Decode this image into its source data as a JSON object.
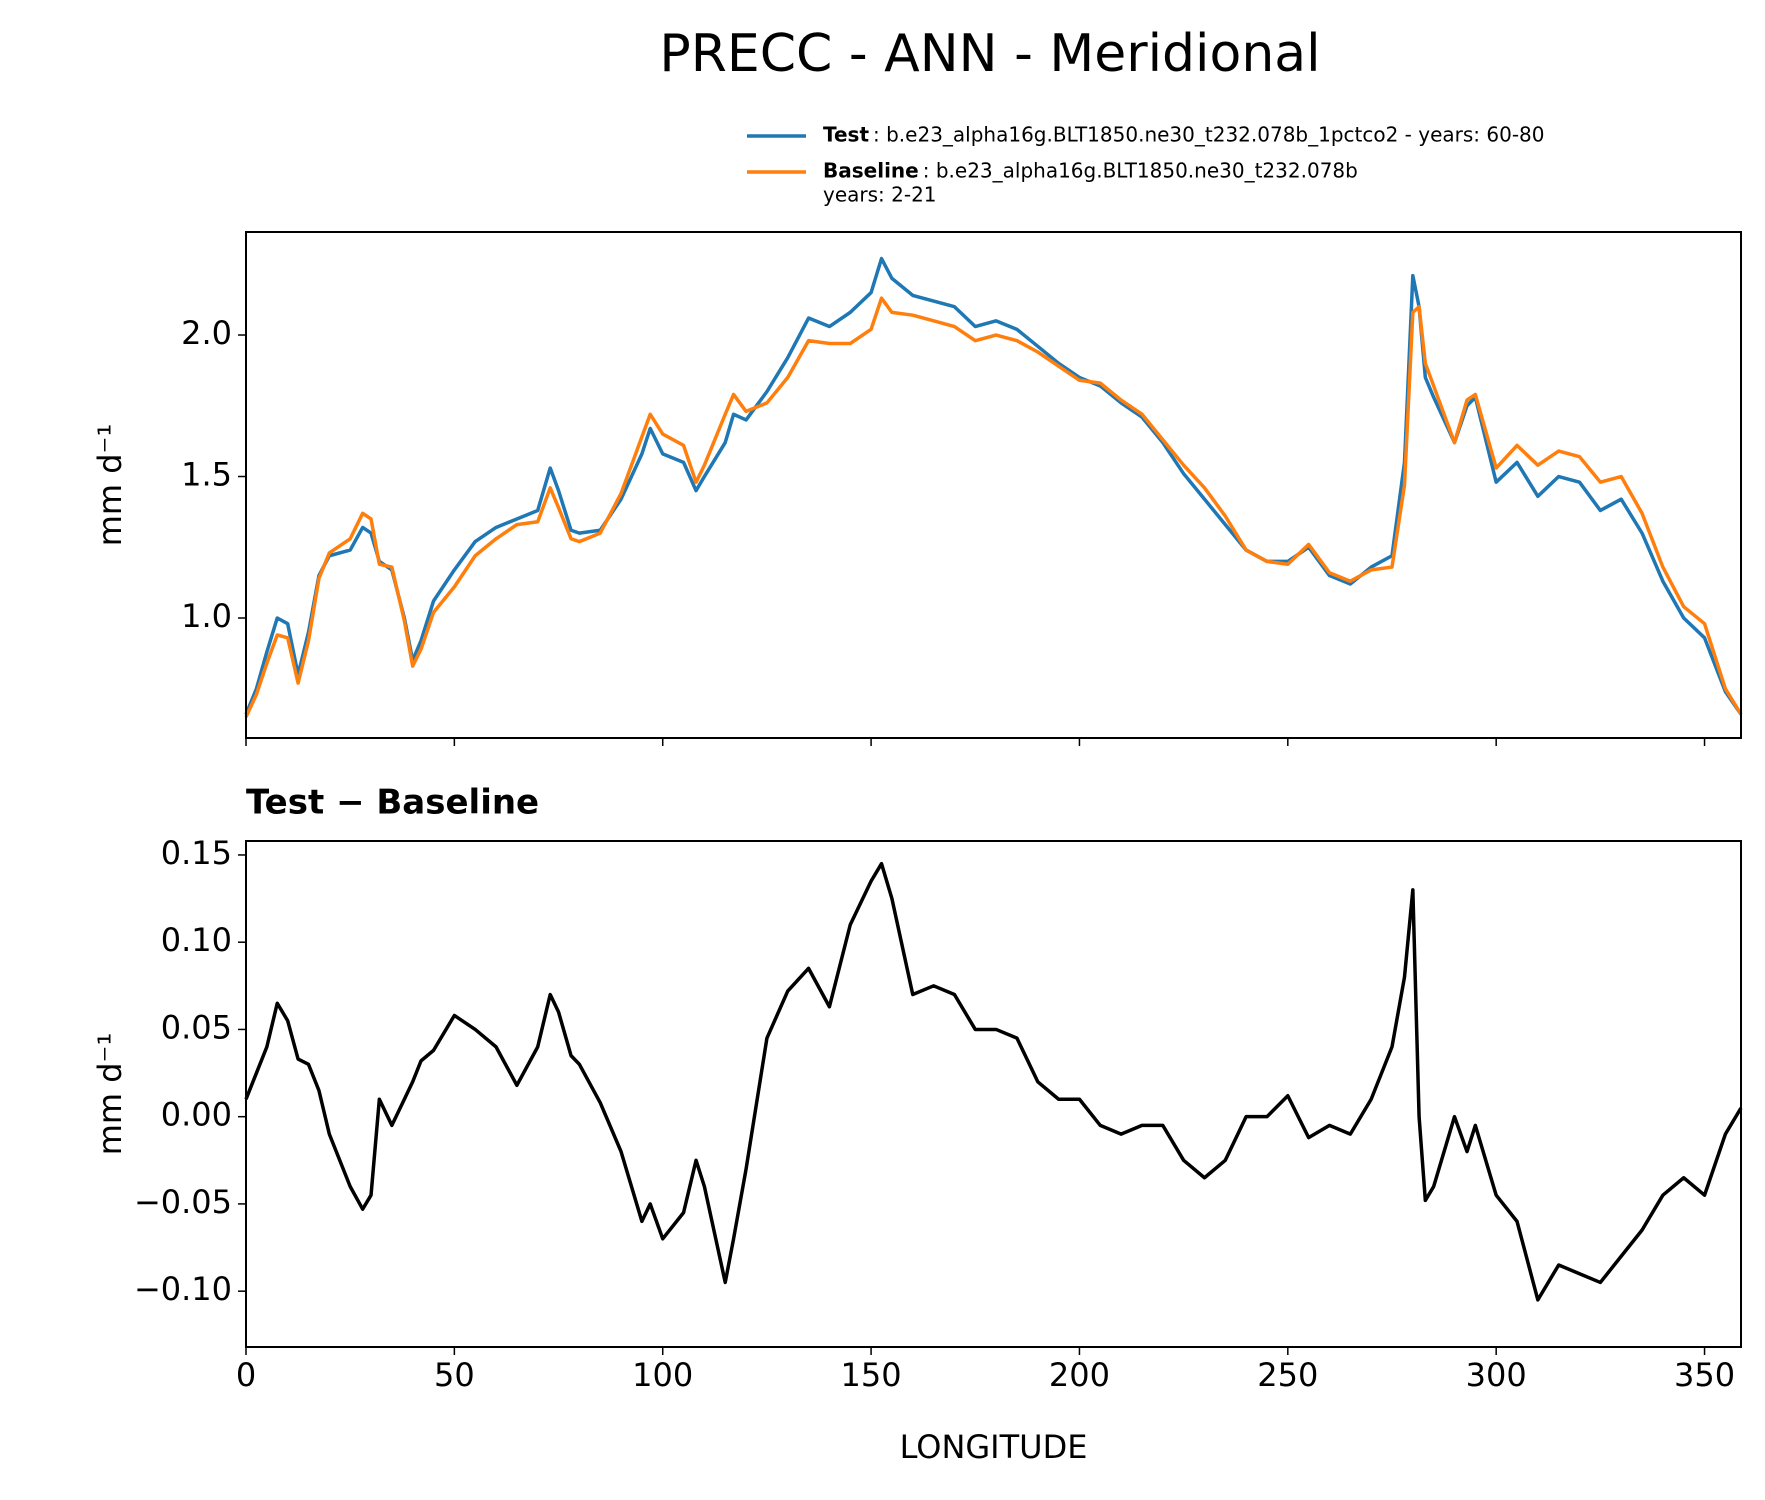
{
  "title": "PRECC - ANN - Meridional",
  "chart_data": [
    {
      "type": "line",
      "ylabel": "mm d⁻¹",
      "x": [
        0,
        2.5,
        5,
        7.5,
        10,
        12.5,
        15,
        17.5,
        20,
        25,
        28,
        30,
        32,
        35,
        38,
        40,
        42,
        45,
        50,
        55,
        60,
        65,
        70,
        73,
        75,
        78,
        80,
        85,
        90,
        95,
        97,
        100,
        105,
        108,
        110,
        115,
        117,
        120,
        125,
        130,
        135,
        140,
        145,
        150,
        152.5,
        155,
        160,
        165,
        170,
        175,
        180,
        185,
        190,
        195,
        200,
        205,
        210,
        215,
        220,
        225,
        230,
        235,
        240,
        245,
        250,
        255,
        260,
        265,
        270,
        275,
        278,
        280,
        281.5,
        283,
        285,
        290,
        293,
        295,
        300,
        305,
        310,
        315,
        320,
        325,
        330,
        335,
        340,
        345,
        350,
        355,
        358.75
      ],
      "series": [
        {
          "name": "Test",
          "description": [
            ": b.e23_alpha16g.BLT1850.ne30_t232.078b_1pctco2 - years: 60-80"
          ],
          "color": "#1f77b4",
          "values": [
            0.66,
            0.75,
            0.88,
            1.0,
            0.98,
            0.8,
            0.95,
            1.15,
            1.22,
            1.24,
            1.32,
            1.3,
            1.2,
            1.17,
            1.0,
            0.85,
            0.92,
            1.06,
            1.17,
            1.27,
            1.32,
            1.35,
            1.38,
            1.53,
            1.45,
            1.31,
            1.3,
            1.31,
            1.42,
            1.58,
            1.67,
            1.58,
            1.55,
            1.45,
            1.5,
            1.62,
            1.72,
            1.7,
            1.8,
            1.92,
            2.06,
            2.03,
            2.08,
            2.15,
            2.27,
            2.2,
            2.14,
            2.12,
            2.1,
            2.03,
            2.05,
            2.02,
            1.96,
            1.9,
            1.85,
            1.82,
            1.76,
            1.71,
            1.62,
            1.51,
            1.42,
            1.33,
            1.24,
            1.2,
            1.2,
            1.25,
            1.15,
            1.12,
            1.18,
            1.22,
            1.55,
            2.21,
            2.1,
            1.85,
            1.78,
            1.62,
            1.75,
            1.78,
            1.48,
            1.55,
            1.43,
            1.5,
            1.48,
            1.38,
            1.42,
            1.3,
            1.13,
            1.0,
            0.93,
            0.74,
            0.66
          ]
        },
        {
          "name": "Baseline",
          "description": [
            ": b.e23_alpha16g.BLT1850.ne30_t232.078b",
            "years: 2-21"
          ],
          "color": "#ff7f0e",
          "values": [
            0.65,
            0.73,
            0.84,
            0.94,
            0.93,
            0.77,
            0.92,
            1.14,
            1.23,
            1.28,
            1.37,
            1.35,
            1.19,
            1.18,
            0.99,
            0.83,
            0.89,
            1.02,
            1.11,
            1.22,
            1.28,
            1.33,
            1.34,
            1.46,
            1.39,
            1.28,
            1.27,
            1.3,
            1.44,
            1.64,
            1.72,
            1.65,
            1.61,
            1.48,
            1.54,
            1.72,
            1.79,
            1.73,
            1.76,
            1.85,
            1.98,
            1.97,
            1.97,
            2.02,
            2.13,
            2.08,
            2.07,
            2.05,
            2.03,
            1.98,
            2.0,
            1.98,
            1.94,
            1.89,
            1.84,
            1.83,
            1.77,
            1.72,
            1.63,
            1.54,
            1.46,
            1.36,
            1.24,
            1.2,
            1.19,
            1.26,
            1.16,
            1.13,
            1.17,
            1.18,
            1.47,
            2.08,
            2.1,
            1.9,
            1.82,
            1.62,
            1.77,
            1.79,
            1.53,
            1.61,
            1.54,
            1.59,
            1.57,
            1.48,
            1.5,
            1.37,
            1.18,
            1.04,
            0.98,
            0.75,
            0.66
          ]
        }
      ],
      "xlim": [
        0,
        358.75
      ],
      "xticks": [
        0,
        50,
        100,
        150,
        200,
        250,
        300,
        350
      ],
      "ylim": [
        0.576,
        2.364
      ],
      "yticks": [
        {
          "value": 1,
          "label": "1.0"
        },
        {
          "value": 1.5,
          "label": "1.5"
        },
        {
          "value": 2,
          "label": "2.0"
        }
      ],
      "legend": "upper right"
    },
    {
      "type": "line",
      "title": "Test − Baseline",
      "xlabel": "LONGITUDE",
      "ylabel": "mm d⁻¹",
      "x": [
        0,
        2.5,
        5,
        7.5,
        10,
        12.5,
        15,
        17.5,
        20,
        25,
        28,
        30,
        32,
        35,
        38,
        40,
        42,
        45,
        50,
        55,
        60,
        65,
        70,
        73,
        75,
        78,
        80,
        85,
        90,
        95,
        97,
        100,
        105,
        108,
        110,
        115,
        117,
        120,
        125,
        130,
        135,
        140,
        145,
        150,
        152.5,
        155,
        160,
        165,
        170,
        175,
        180,
        185,
        190,
        195,
        200,
        205,
        210,
        215,
        220,
        225,
        230,
        235,
        240,
        245,
        250,
        255,
        260,
        265,
        270,
        275,
        278,
        280,
        281.5,
        283,
        285,
        290,
        293,
        295,
        300,
        305,
        310,
        315,
        320,
        325,
        330,
        335,
        340,
        345,
        350,
        355,
        358.75
      ],
      "color": "#000000",
      "values": [
        0.01,
        0.025,
        0.04,
        0.065,
        0.055,
        0.033,
        0.03,
        0.015,
        -0.01,
        -0.04,
        -0.053,
        -0.045,
        0.01,
        -0.005,
        0.01,
        0.02,
        0.032,
        0.038,
        0.058,
        0.05,
        0.04,
        0.018,
        0.04,
        0.07,
        0.06,
        0.035,
        0.03,
        0.008,
        -0.02,
        -0.06,
        -0.05,
        -0.07,
        -0.055,
        -0.025,
        -0.04,
        -0.095,
        -0.07,
        -0.03,
        0.045,
        0.072,
        0.085,
        0.063,
        0.11,
        0.135,
        0.145,
        0.125,
        0.07,
        0.075,
        0.07,
        0.05,
        0.05,
        0.045,
        0.02,
        0.01,
        0.01,
        -0.005,
        -0.01,
        -0.005,
        -0.005,
        -0.025,
        -0.035,
        -0.025,
        0.0,
        0.0,
        0.012,
        -0.012,
        -0.005,
        -0.01,
        0.01,
        0.04,
        0.08,
        0.13,
        0.0,
        -0.048,
        -0.04,
        0.0,
        -0.02,
        -0.005,
        -0.045,
        -0.06,
        -0.105,
        -0.085,
        -0.09,
        -0.095,
        -0.08,
        -0.065,
        -0.045,
        -0.035,
        -0.045,
        -0.01,
        0.005
      ],
      "xlim": [
        0,
        358.75
      ],
      "xticks": [
        0,
        50,
        100,
        150,
        200,
        250,
        300,
        350
      ],
      "ylim": [
        -0.132,
        0.158
      ],
      "yticks": [
        {
          "value": -0.1,
          "label": "−0.10"
        },
        {
          "value": -0.05,
          "label": "−0.05"
        },
        {
          "value": 0,
          "label": "0.00"
        },
        {
          "value": 0.05,
          "label": "0.05"
        },
        {
          "value": 0.1,
          "label": "0.10"
        },
        {
          "value": 0.15,
          "label": "0.15"
        }
      ]
    }
  ]
}
